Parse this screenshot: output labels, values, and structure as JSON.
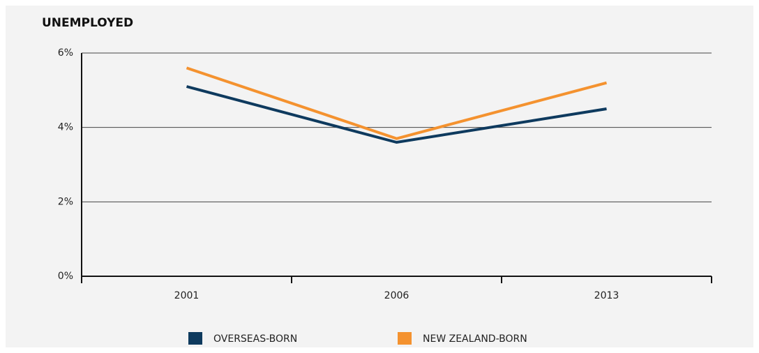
{
  "chart_data": {
    "type": "line",
    "title": "UNEMPLOYED",
    "categories": [
      "2001",
      "2006",
      "2013"
    ],
    "series": [
      {
        "name": "OVERSEAS-BORN",
        "color": "#0e3a5e",
        "values": [
          5.1,
          3.6,
          4.5
        ]
      },
      {
        "name": "NEW ZEALAND-BORN",
        "color": "#f4922f",
        "values": [
          5.6,
          3.7,
          5.2
        ]
      }
    ],
    "ylim": [
      0,
      6
    ],
    "yticks": [
      {
        "value": 0,
        "label": "0%"
      },
      {
        "value": 2,
        "label": "2%"
      },
      {
        "value": 4,
        "label": "4%"
      },
      {
        "value": 6,
        "label": "6%"
      }
    ],
    "grid": true,
    "legend": "bottom"
  }
}
